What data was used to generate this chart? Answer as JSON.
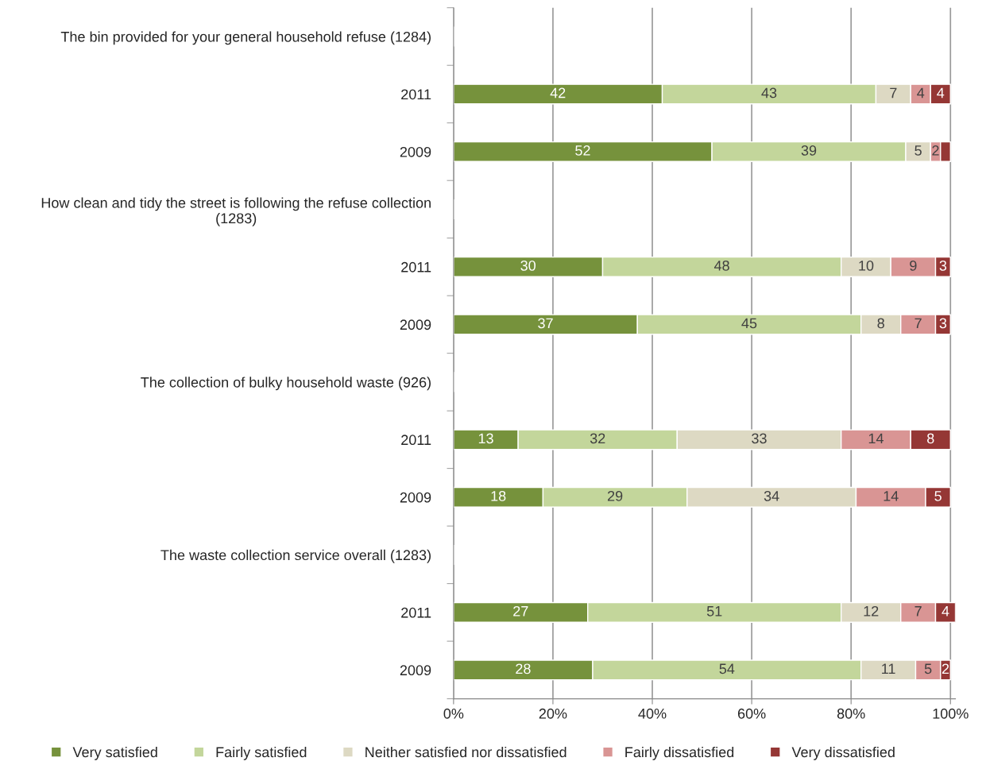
{
  "chart_data": {
    "type": "bar",
    "orientation": "horizontal",
    "stacked": true,
    "categories": [
      "The bin provided for your general household refuse (1284)",
      "2011",
      "2009",
      "How clean and tidy the street is following the refuse collection\n(1283)",
      "2011",
      "2009",
      "The collection of bulky household waste (926)",
      "2011",
      "2009",
      "The waste collection service overall (1283)",
      "2011",
      "2009"
    ],
    "series": [
      {
        "name": "Very satisfied",
        "color": "#76923c",
        "values": [
          null,
          42,
          52,
          null,
          30,
          37,
          null,
          13,
          18,
          null,
          27,
          28
        ],
        "value_labels": [
          null,
          "42",
          "52",
          null,
          "30",
          "37",
          null,
          "13",
          "18",
          null,
          "27",
          "28"
        ]
      },
      {
        "name": "Fairly satisfied",
        "color": "#c3d69b",
        "values": [
          null,
          43,
          39,
          null,
          48,
          45,
          null,
          32,
          29,
          null,
          51,
          54
        ],
        "value_labels": [
          null,
          "43",
          "39",
          null,
          "48",
          "45",
          null,
          "32",
          "29",
          null,
          "51",
          "54"
        ]
      },
      {
        "name": "Neither satisfied nor dissatisfied",
        "color": "#ddd9c3",
        "values": [
          null,
          7,
          5,
          null,
          10,
          8,
          null,
          33,
          34,
          null,
          12,
          11
        ],
        "value_labels": [
          null,
          "7",
          "5",
          null,
          "10",
          "8",
          null,
          "33",
          "34",
          null,
          "12",
          "11"
        ]
      },
      {
        "name": "Fairly dissatisfied",
        "color": "#d99594",
        "values": [
          null,
          4,
          2,
          null,
          9,
          7,
          null,
          14,
          14,
          null,
          7,
          5
        ],
        "value_labels": [
          null,
          "4",
          "2",
          null,
          "9",
          "7",
          null,
          "14",
          "14",
          null,
          "7",
          "5"
        ]
      },
      {
        "name": "Very dissatisfied",
        "color": "#953735",
        "values": [
          null,
          4,
          2,
          null,
          3,
          3,
          null,
          8,
          5,
          null,
          4,
          2
        ],
        "value_labels": [
          null,
          "4",
          null,
          null,
          "3",
          "3",
          null,
          "8",
          "5",
          null,
          "4",
          "2"
        ]
      }
    ],
    "xlim": [
      0,
      101
    ],
    "xticks": [
      {
        "value": 0,
        "label": "0%"
      },
      {
        "value": 20,
        "label": "20%"
      },
      {
        "value": 40,
        "label": "40%"
      },
      {
        "value": 60,
        "label": "60%"
      },
      {
        "value": 80,
        "label": "80%"
      },
      {
        "value": 100,
        "label": "100%"
      }
    ],
    "grid": "x",
    "legend": "bottom"
  }
}
